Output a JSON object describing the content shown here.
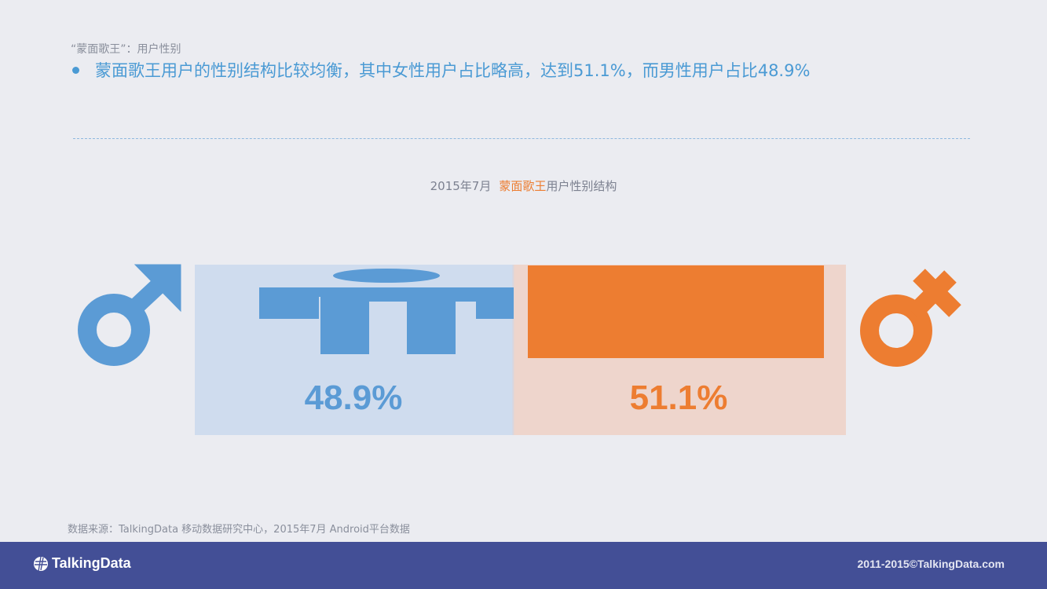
{
  "header": {
    "subtitle": "“蒙面歌王”：用户性别",
    "headline": "蒙面歌王用户的性别结构比较均衡，其中女性用户占比略高，达到51.1%，而男性用户占比48.9%"
  },
  "chart_data": {
    "type": "bar",
    "title_parts": [
      "2015年7月",
      "蒙面歌王",
      "用户性别结构"
    ],
    "categories": [
      "男性",
      "女性"
    ],
    "values": [
      48.9,
      51.1
    ],
    "value_labels": [
      "48.9%",
      "51.1%"
    ],
    "colors": [
      "#5b9bd5",
      "#ed7d31"
    ],
    "background_colors": [
      "#cfdcee",
      "#eed5cc"
    ],
    "icons": [
      "male-symbol-icon",
      "female-symbol-icon"
    ]
  },
  "footer": {
    "source": "数据来源：TalkingData 移动数据研究中心，2015年7月 Android平台数据",
    "logo_text": "TalkingData",
    "copyright": "2011-2015©TalkingData.com",
    "bar_color": "#434f96"
  }
}
